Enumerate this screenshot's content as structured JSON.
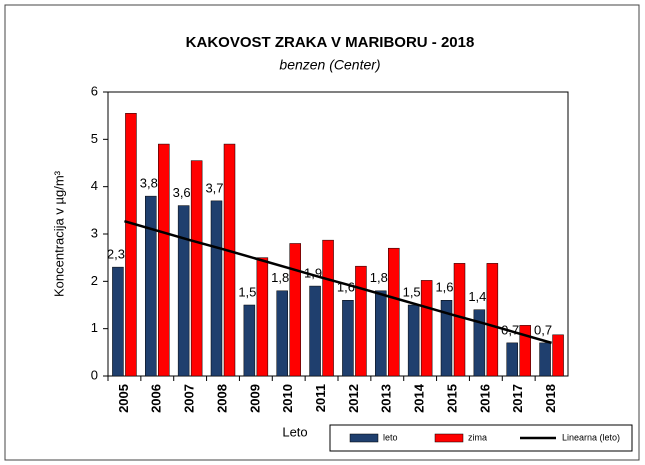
{
  "chart_data": {
    "type": "bar",
    "title": "KAKOVOST ZRAKA V MARIBORU - 2018",
    "subtitle": "benzen (Center)",
    "ylabel": "Koncentracija v µg/m³",
    "xlabel": "Leto",
    "categories": [
      "2005",
      "2006",
      "2007",
      "2008",
      "2009",
      "2010",
      "2011",
      "2012",
      "2013",
      "2014",
      "2015",
      "2016",
      "2017",
      "2018"
    ],
    "series": [
      {
        "name": "leto",
        "color": "#1f3f6e",
        "values": [
          2.3,
          3.8,
          3.6,
          3.7,
          1.5,
          1.8,
          1.9,
          1.6,
          1.8,
          1.5,
          1.6,
          1.4,
          0.7,
          0.7
        ],
        "value_labels": [
          "2,3",
          "3,8",
          "3,6",
          "3,7",
          "1,5",
          "1,8",
          "1,9",
          "1,6",
          "1,8",
          "1,5",
          "1,6",
          "1,4",
          "0,7",
          "0,7"
        ]
      },
      {
        "name": "zima",
        "color": "#ff0000",
        "values": [
          5.55,
          4.9,
          4.55,
          4.9,
          2.5,
          2.8,
          2.87,
          2.32,
          2.7,
          2.02,
          2.38,
          2.38,
          1.07,
          0.87
        ]
      }
    ],
    "trend": {
      "name": "Linearna (leto)",
      "color": "#000000",
      "values": [
        3.27,
        3.07,
        2.87,
        2.68,
        2.48,
        2.28,
        2.08,
        1.89,
        1.69,
        1.49,
        1.29,
        1.1,
        0.9,
        0.7
      ]
    },
    "ylim": [
      0,
      6
    ],
    "yticks": [
      0,
      1,
      2,
      3,
      4,
      5,
      6
    ]
  }
}
